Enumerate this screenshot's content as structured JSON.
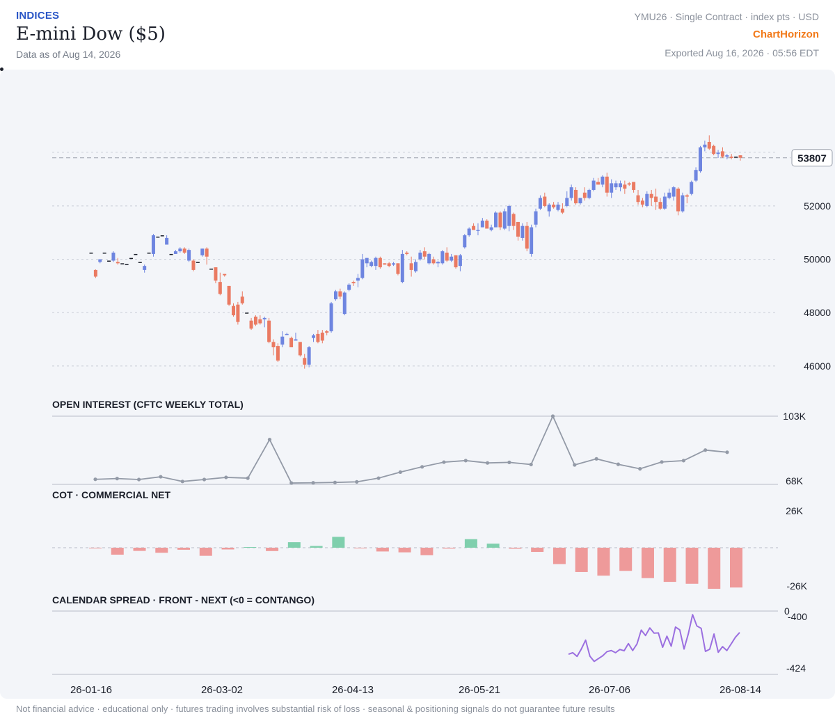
{
  "header": {
    "category": "INDICES",
    "title": "E-mini Dow ($5)",
    "data_as_of": "Data as of Aug 14, 2026",
    "contract_meta": "YMU26 · Single Contract · index pts · USD",
    "brand": "ChartHorizon",
    "exported": "Exported Aug 16, 2026 · 05:56 EDT"
  },
  "footer": {
    "disclaimer": "Not financial advice · educational only · futures trading involves substantial risk of loss · seasonal & positioning signals do not guarantee future results"
  },
  "colors": {
    "up": "#6e85e0",
    "down": "#ea7a62",
    "oi_line": "#939aa7",
    "cot_positive": "#7fcfad",
    "cot_negative": "#ee9a9a",
    "spread_line": "#9b6fe0",
    "background": "#f3f5f9"
  },
  "chart_data": [
    {
      "type": "candlestick",
      "title": "",
      "y_ticks": [
        46000,
        48000,
        50000,
        52000
      ],
      "ylim": [
        45500,
        56200
      ],
      "last_price": 53807,
      "last_price_label": "53807",
      "x_ticks": [
        "26-01-16",
        "26-03-02",
        "26-04-13",
        "26-05-21",
        "26-07-06",
        "26-08-14"
      ],
      "grid": true,
      "candles": [
        {
          "o": 50250,
          "h": 50250,
          "l": 50250,
          "c": 50250
        },
        {
          "o": 49600,
          "h": 49620,
          "l": 49300,
          "c": 49350
        },
        {
          "o": 49900,
          "h": 50000,
          "l": 49850,
          "c": 50000
        },
        {
          "o": 50250,
          "h": 50250,
          "l": 50250,
          "c": 50250
        },
        {
          "o": 49950,
          "h": 49950,
          "l": 49950,
          "c": 49950
        },
        {
          "o": 49950,
          "h": 50300,
          "l": 49900,
          "c": 50250
        },
        {
          "o": 49900,
          "h": 50050,
          "l": 49800,
          "c": 49850
        },
        {
          "o": 49850,
          "h": 49850,
          "l": 49850,
          "c": 49850
        },
        {
          "o": 49820,
          "h": 49820,
          "l": 49820,
          "c": 49820
        },
        {
          "o": 50050,
          "h": 50050,
          "l": 50050,
          "c": 50050
        },
        {
          "o": 50200,
          "h": 50200,
          "l": 50200,
          "c": 50200
        },
        {
          "o": 49900,
          "h": 49900,
          "l": 49900,
          "c": 49900
        },
        {
          "o": 49600,
          "h": 49800,
          "l": 49500,
          "c": 49750
        },
        {
          "o": 50250,
          "h": 50250,
          "l": 50250,
          "c": 50250
        },
        {
          "o": 50200,
          "h": 50950,
          "l": 50100,
          "c": 50900
        },
        {
          "o": 50850,
          "h": 50850,
          "l": 50850,
          "c": 50850
        },
        {
          "o": 50900,
          "h": 50900,
          "l": 50900,
          "c": 50900
        },
        {
          "o": 50550,
          "h": 50900,
          "l": 50550,
          "c": 50800
        },
        {
          "o": 50200,
          "h": 50200,
          "l": 50200,
          "c": 50200
        },
        {
          "o": 50200,
          "h": 50350,
          "l": 50200,
          "c": 50300
        },
        {
          "o": 50300,
          "h": 50450,
          "l": 50250,
          "c": 50400
        },
        {
          "o": 50400,
          "h": 50450,
          "l": 50200,
          "c": 50250
        },
        {
          "o": 49950,
          "h": 50400,
          "l": 49900,
          "c": 50350
        },
        {
          "o": 49950,
          "h": 50000,
          "l": 49550,
          "c": 49600
        },
        {
          "o": 49900,
          "h": 49900,
          "l": 49900,
          "c": 49900
        },
        {
          "o": 50150,
          "h": 50400,
          "l": 50100,
          "c": 50400
        },
        {
          "o": 50400,
          "h": 50450,
          "l": 49800,
          "c": 50100
        },
        {
          "o": 49650,
          "h": 49650,
          "l": 49650,
          "c": 49650
        },
        {
          "o": 49700,
          "h": 49700,
          "l": 49100,
          "c": 49200
        },
        {
          "o": 49150,
          "h": 49500,
          "l": 48650,
          "c": 48700
        },
        {
          "o": 49450,
          "h": 49450,
          "l": 49350,
          "c": 49400
        },
        {
          "o": 49000,
          "h": 49000,
          "l": 48250,
          "c": 48300
        },
        {
          "o": 48250,
          "h": 48350,
          "l": 47850,
          "c": 47900
        },
        {
          "o": 48300,
          "h": 48400,
          "l": 47550,
          "c": 47650
        },
        {
          "o": 48600,
          "h": 48800,
          "l": 48300,
          "c": 48350
        },
        {
          "o": 48000,
          "h": 48000,
          "l": 48000,
          "c": 48000
        },
        {
          "o": 47700,
          "h": 47800,
          "l": 47350,
          "c": 47400
        },
        {
          "o": 47850,
          "h": 47900,
          "l": 47500,
          "c": 47550
        },
        {
          "o": 47750,
          "h": 47900,
          "l": 47550,
          "c": 47600
        },
        {
          "o": 47750,
          "h": 47850,
          "l": 47450,
          "c": 47800
        },
        {
          "o": 47700,
          "h": 47800,
          "l": 46850,
          "c": 46900
        },
        {
          "o": 46900,
          "h": 47000,
          "l": 46400,
          "c": 46700
        },
        {
          "o": 46750,
          "h": 46850,
          "l": 46150,
          "c": 46200
        },
        {
          "o": 46800,
          "h": 47300,
          "l": 46700,
          "c": 47100
        },
        {
          "o": 47200,
          "h": 47250,
          "l": 47200,
          "c": 47200
        },
        {
          "o": 47050,
          "h": 47100,
          "l": 46700,
          "c": 46700
        },
        {
          "o": 46950,
          "h": 47250,
          "l": 46950,
          "c": 47000
        },
        {
          "o": 46900,
          "h": 46900,
          "l": 46350,
          "c": 46400
        },
        {
          "o": 46300,
          "h": 46450,
          "l": 45900,
          "c": 46050
        },
        {
          "o": 46050,
          "h": 46750,
          "l": 45950,
          "c": 46700
        },
        {
          "o": 47050,
          "h": 47200,
          "l": 46900,
          "c": 47150
        },
        {
          "o": 47200,
          "h": 47350,
          "l": 46850,
          "c": 46900
        },
        {
          "o": 47250,
          "h": 47350,
          "l": 46850,
          "c": 46950
        },
        {
          "o": 47300,
          "h": 47350,
          "l": 47150,
          "c": 47250
        },
        {
          "o": 47300,
          "h": 48400,
          "l": 47250,
          "c": 48350
        },
        {
          "o": 48500,
          "h": 48850,
          "l": 48450,
          "c": 48800
        },
        {
          "o": 48800,
          "h": 48900,
          "l": 48500,
          "c": 48600
        },
        {
          "o": 47950,
          "h": 48800,
          "l": 47900,
          "c": 48750
        },
        {
          "o": 48850,
          "h": 49100,
          "l": 48800,
          "c": 49050
        },
        {
          "o": 49150,
          "h": 49200,
          "l": 49000,
          "c": 49100
        },
        {
          "o": 49200,
          "h": 49450,
          "l": 48950,
          "c": 49300
        },
        {
          "o": 49300,
          "h": 50200,
          "l": 49250,
          "c": 50000
        },
        {
          "o": 49850,
          "h": 50050,
          "l": 49700,
          "c": 50050
        },
        {
          "o": 49750,
          "h": 49950,
          "l": 49700,
          "c": 49900
        },
        {
          "o": 49750,
          "h": 50100,
          "l": 49600,
          "c": 50050
        },
        {
          "o": 50050,
          "h": 50100,
          "l": 49650,
          "c": 49700
        },
        {
          "o": 49850,
          "h": 49850,
          "l": 49800,
          "c": 49800
        },
        {
          "o": 49850,
          "h": 49900,
          "l": 49700,
          "c": 49750
        },
        {
          "o": 49800,
          "h": 49900,
          "l": 49750,
          "c": 49850
        },
        {
          "o": 49850,
          "h": 49850,
          "l": 49400,
          "c": 49450
        },
        {
          "o": 49150,
          "h": 50350,
          "l": 49100,
          "c": 50200
        },
        {
          "o": 50250,
          "h": 50300,
          "l": 50150,
          "c": 50200
        },
        {
          "o": 49850,
          "h": 50100,
          "l": 49350,
          "c": 49600
        },
        {
          "o": 49550,
          "h": 50000,
          "l": 49500,
          "c": 49900
        },
        {
          "o": 50000,
          "h": 50350,
          "l": 49950,
          "c": 50250
        },
        {
          "o": 50300,
          "h": 50450,
          "l": 50000,
          "c": 50100
        },
        {
          "o": 49850,
          "h": 50250,
          "l": 49800,
          "c": 50200
        },
        {
          "o": 50000,
          "h": 50100,
          "l": 49800,
          "c": 49850
        },
        {
          "o": 49850,
          "h": 49950,
          "l": 49700,
          "c": 49900
        },
        {
          "o": 49850,
          "h": 50350,
          "l": 49800,
          "c": 50300
        },
        {
          "o": 50250,
          "h": 50450,
          "l": 49900,
          "c": 49950
        },
        {
          "o": 49950,
          "h": 50200,
          "l": 49900,
          "c": 50100
        },
        {
          "o": 50150,
          "h": 50150,
          "l": 49650,
          "c": 49700
        },
        {
          "o": 49750,
          "h": 50200,
          "l": 49550,
          "c": 50150
        },
        {
          "o": 50450,
          "h": 50950,
          "l": 50400,
          "c": 50900
        },
        {
          "o": 50900,
          "h": 51200,
          "l": 50850,
          "c": 51150
        },
        {
          "o": 51250,
          "h": 51350,
          "l": 51100,
          "c": 51100
        },
        {
          "o": 51100,
          "h": 51350,
          "l": 50900,
          "c": 51100
        },
        {
          "o": 51200,
          "h": 51550,
          "l": 51200,
          "c": 51450
        },
        {
          "o": 51450,
          "h": 51500,
          "l": 51150,
          "c": 51150
        },
        {
          "o": 51100,
          "h": 51300,
          "l": 51050,
          "c": 51200
        },
        {
          "o": 51200,
          "h": 51800,
          "l": 51200,
          "c": 51750
        },
        {
          "o": 51750,
          "h": 51800,
          "l": 51100,
          "c": 51200
        },
        {
          "o": 51150,
          "h": 51900,
          "l": 51100,
          "c": 51800
        },
        {
          "o": 51250,
          "h": 52050,
          "l": 51050,
          "c": 52000
        },
        {
          "o": 51700,
          "h": 51750,
          "l": 51100,
          "c": 51250
        },
        {
          "o": 51400,
          "h": 51400,
          "l": 50700,
          "c": 50850
        },
        {
          "o": 50800,
          "h": 51350,
          "l": 50700,
          "c": 51250
        },
        {
          "o": 51250,
          "h": 51400,
          "l": 50300,
          "c": 50400
        },
        {
          "o": 50200,
          "h": 51300,
          "l": 50100,
          "c": 51200
        },
        {
          "o": 51300,
          "h": 51900,
          "l": 51200,
          "c": 51800
        },
        {
          "o": 51900,
          "h": 52400,
          "l": 51850,
          "c": 52300
        },
        {
          "o": 52350,
          "h": 52500,
          "l": 51950,
          "c": 52000
        },
        {
          "o": 51800,
          "h": 52100,
          "l": 51600,
          "c": 52050
        },
        {
          "o": 52050,
          "h": 52150,
          "l": 51900,
          "c": 51950
        },
        {
          "o": 51850,
          "h": 52150,
          "l": 51800,
          "c": 52050
        },
        {
          "o": 51900,
          "h": 52100,
          "l": 51700,
          "c": 51750
        },
        {
          "o": 52000,
          "h": 52550,
          "l": 51950,
          "c": 52300
        },
        {
          "o": 52300,
          "h": 52800,
          "l": 52200,
          "c": 52700
        },
        {
          "o": 52600,
          "h": 52700,
          "l": 52050,
          "c": 52100
        },
        {
          "o": 52100,
          "h": 52300,
          "l": 52050,
          "c": 52300
        },
        {
          "o": 52500,
          "h": 52700,
          "l": 52200,
          "c": 52300
        },
        {
          "o": 52300,
          "h": 52650,
          "l": 52250,
          "c": 52600
        },
        {
          "o": 52600,
          "h": 53050,
          "l": 52550,
          "c": 52950
        },
        {
          "o": 52900,
          "h": 53050,
          "l": 52800,
          "c": 52800
        },
        {
          "o": 52800,
          "h": 53150,
          "l": 52700,
          "c": 53100
        },
        {
          "o": 53100,
          "h": 53250,
          "l": 52350,
          "c": 52500
        },
        {
          "o": 52500,
          "h": 53000,
          "l": 52300,
          "c": 52850
        },
        {
          "o": 52700,
          "h": 52950,
          "l": 52600,
          "c": 52850
        },
        {
          "o": 52700,
          "h": 52950,
          "l": 52550,
          "c": 52850
        },
        {
          "o": 52800,
          "h": 52950,
          "l": 52450,
          "c": 52650
        },
        {
          "o": 52850,
          "h": 52900,
          "l": 52750,
          "c": 52800
        },
        {
          "o": 52900,
          "h": 52900,
          "l": 52500,
          "c": 52600
        },
        {
          "o": 52400,
          "h": 52600,
          "l": 52050,
          "c": 52150
        },
        {
          "o": 52200,
          "h": 52300,
          "l": 51950,
          "c": 52050
        },
        {
          "o": 52000,
          "h": 52550,
          "l": 51950,
          "c": 52450
        },
        {
          "o": 52450,
          "h": 52600,
          "l": 52000,
          "c": 52300
        },
        {
          "o": 52350,
          "h": 52650,
          "l": 51850,
          "c": 52150
        },
        {
          "o": 52150,
          "h": 52300,
          "l": 51850,
          "c": 51900
        },
        {
          "o": 51900,
          "h": 52500,
          "l": 51850,
          "c": 52350
        },
        {
          "o": 52300,
          "h": 52650,
          "l": 52250,
          "c": 52500
        },
        {
          "o": 52350,
          "h": 52750,
          "l": 52200,
          "c": 52700
        },
        {
          "o": 52650,
          "h": 52700,
          "l": 51650,
          "c": 51800
        },
        {
          "o": 51800,
          "h": 52500,
          "l": 51750,
          "c": 52400
        },
        {
          "o": 52400,
          "h": 52450,
          "l": 52100,
          "c": 52350
        },
        {
          "o": 52450,
          "h": 52950,
          "l": 52400,
          "c": 52900
        },
        {
          "o": 52950,
          "h": 53450,
          "l": 52900,
          "c": 53350
        },
        {
          "o": 53300,
          "h": 54250,
          "l": 53250,
          "c": 54200
        },
        {
          "o": 54200,
          "h": 54450,
          "l": 54050,
          "c": 54300
        },
        {
          "o": 54400,
          "h": 54650,
          "l": 54100,
          "c": 54150
        },
        {
          "o": 54250,
          "h": 54300,
          "l": 53900,
          "c": 53950
        },
        {
          "o": 53950,
          "h": 54100,
          "l": 53800,
          "c": 54000
        },
        {
          "o": 54050,
          "h": 54200,
          "l": 53800,
          "c": 53850
        },
        {
          "o": 53850,
          "h": 53950,
          "l": 53750,
          "c": 53900
        },
        {
          "o": 53850,
          "h": 53950,
          "l": 53750,
          "c": 53800
        },
        {
          "o": 53850,
          "h": 53850,
          "l": 53850,
          "c": 53850
        },
        {
          "o": 53900,
          "h": 53900,
          "l": 53700,
          "c": 53807
        }
      ]
    },
    {
      "type": "line",
      "title": "OPEN INTEREST (CFTC WEEKLY TOTAL)",
      "ylim": [
        68,
        103
      ],
      "y_ticks_label": [
        "103K",
        "68K"
      ],
      "values": [
        70.6,
        71.0,
        70.5,
        71.9,
        69.5,
        70.5,
        71.6,
        71.2,
        91.0,
        68.7,
        68.8,
        69.0,
        69.3,
        71.2,
        74.3,
        77.0,
        79.4,
        80.2,
        79.0,
        79.3,
        78.2,
        103.0,
        78.0,
        81.1,
        78.3,
        76.0,
        79.5,
        80.2,
        85.6,
        84.5
      ]
    },
    {
      "type": "bar",
      "title": "COT · COMMERCIAL NET",
      "ylim": [
        -26,
        26
      ],
      "y_ticks_label": [
        "26K",
        "-26K"
      ],
      "values": [
        -0.5,
        -4.8,
        -2.2,
        -3.5,
        -1.4,
        -5.6,
        -1.2,
        0.5,
        -2.3,
        3.8,
        1.2,
        7.5,
        -0.3,
        -2.6,
        -3.2,
        -5.2,
        -0.6,
        5.9,
        2.8,
        -0.7,
        -2.9,
        -11.3,
        -16.8,
        -19.3,
        -16.0,
        -21.0,
        -23.6,
        -24.9,
        -28.4,
        -27.5
      ]
    },
    {
      "type": "line",
      "title": "CALENDAR SPREAD · FRONT - NEXT (<0 = CONTANGO)",
      "zero_label": "0",
      "y_ticks_label": [
        "-400",
        "-424"
      ],
      "ylim": [
        -424,
        -400
      ],
      "values": [
        -417.3,
        -416.6,
        -418.3,
        -414.9,
        -410.8,
        -418.2,
        -420.6,
        -419.3,
        -418.0,
        -416.1,
        -415.6,
        -416.6,
        -415.1,
        -415.7,
        -412.4,
        -415.6,
        -412.6,
        -406.2,
        -408.7,
        -405.2,
        -407.6,
        -407.5,
        -414.1,
        -409.0,
        -413.6,
        -404.8,
        -406.1,
        -414.9,
        -407.9,
        -399.1,
        -404.3,
        -405.4,
        -416.0,
        -415.0,
        -408.0,
        -416.4,
        -413.8,
        -415.6,
        -412.6,
        -409.5,
        -407.3
      ]
    }
  ]
}
